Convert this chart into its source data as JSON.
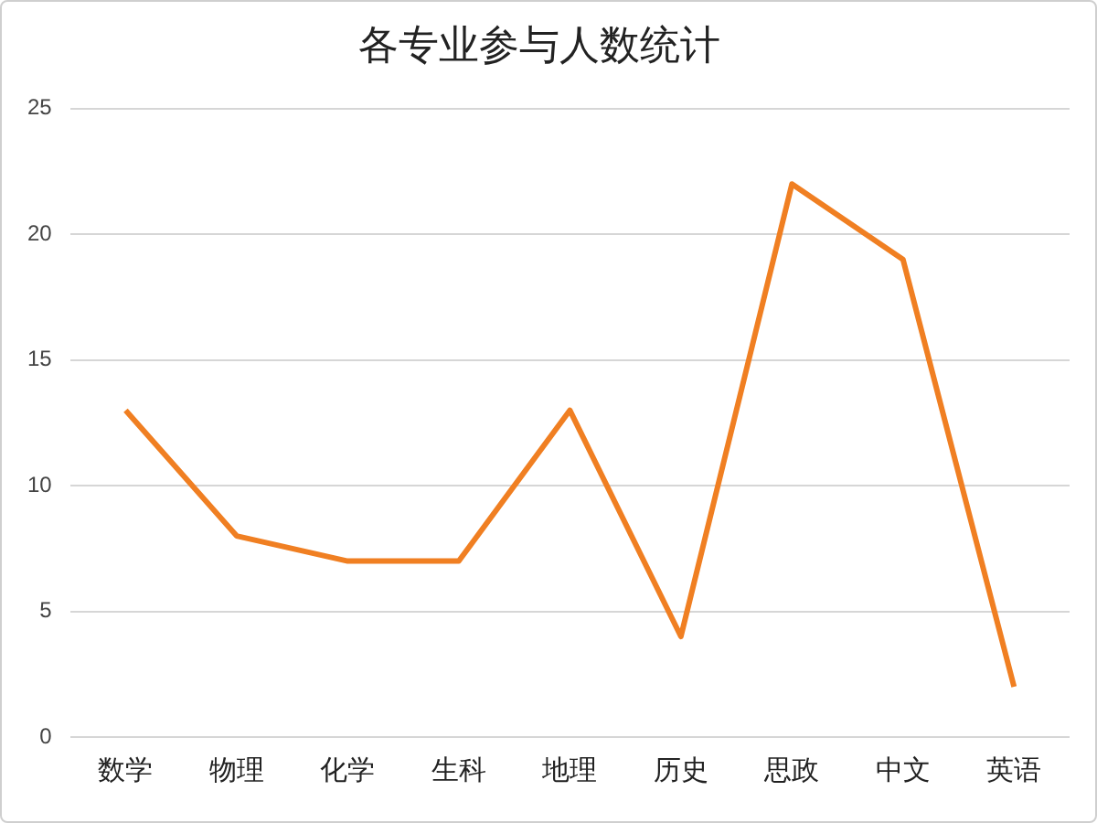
{
  "chart_data": {
    "type": "line",
    "title": "各专业参与人数统计",
    "categories": [
      "数学",
      "物理",
      "化学",
      "生科",
      "地理",
      "历史",
      "思政",
      "中文",
      "英语"
    ],
    "series": [
      {
        "color": "#f07f22",
        "values": [
          13,
          8,
          7,
          7,
          13,
          4,
          22,
          19,
          2
        ]
      }
    ],
    "ylim": [
      0,
      25
    ],
    "yticks": [
      0,
      5,
      10,
      15,
      20,
      25
    ],
    "grid": "y",
    "legend": false,
    "marker": "none",
    "line_style": "solid"
  }
}
